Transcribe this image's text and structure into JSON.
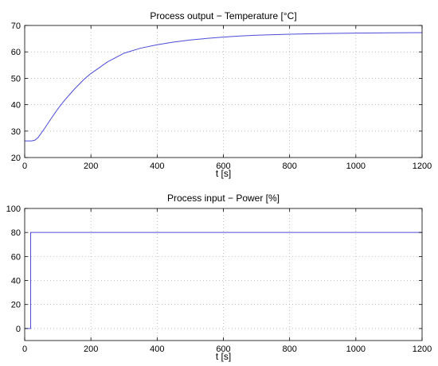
{
  "chart_data": [
    {
      "type": "line",
      "title": "Process output − Temperature [°C]",
      "xlabel": "t [s]",
      "ylabel": "",
      "xlim": [
        0,
        1200
      ],
      "ylim": [
        20,
        70
      ],
      "xticks": [
        0,
        200,
        400,
        600,
        800,
        1000,
        1200
      ],
      "yticks": [
        20,
        30,
        40,
        50,
        60,
        70
      ],
      "grid": true,
      "line_color": "#4b4bd6",
      "series": [
        {
          "x": [
            0,
            20,
            30,
            40,
            60,
            80,
            100,
            120,
            150,
            180,
            200,
            250,
            300,
            350,
            400,
            450,
            500,
            550,
            600,
            650,
            700,
            800,
            900,
            1000,
            1100,
            1200
          ],
          "y": [
            26.3,
            26.3,
            26.5,
            27.5,
            31.0,
            34.8,
            38.4,
            41.6,
            45.9,
            49.7,
            51.8,
            56.2,
            59.5,
            61.4,
            62.7,
            63.7,
            64.5,
            65.1,
            65.6,
            66.0,
            66.3,
            66.7,
            66.95,
            67.1,
            67.2,
            67.3
          ]
        }
      ]
    },
    {
      "type": "line",
      "title": "Process input − Power [%]",
      "xlabel": "t [s]",
      "ylabel": "",
      "xlim": [
        0,
        1200
      ],
      "ylim": [
        -10,
        100
      ],
      "xticks": [
        0,
        200,
        400,
        600,
        800,
        1000,
        1200
      ],
      "yticks": [
        0,
        20,
        40,
        60,
        80,
        100
      ],
      "grid": true,
      "line_color": "#4b4bd6",
      "series": [
        {
          "x": [
            0,
            18,
            18,
            1200
          ],
          "y": [
            0,
            0,
            80,
            80
          ]
        }
      ]
    }
  ]
}
